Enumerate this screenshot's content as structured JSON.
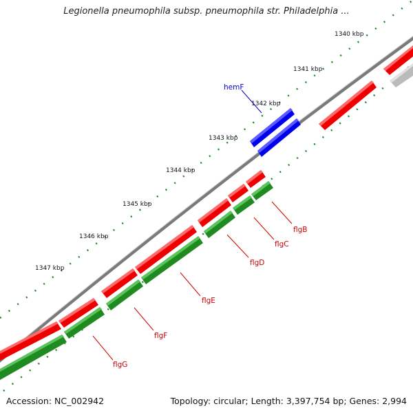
{
  "title": "Legionella pneumophila subsp. pneumophila str. Philadelphia ...",
  "footer": {
    "accession": "Accession: NC_002942",
    "topology": "Topology: circular; Length: 3,397,754 bp; Genes: 2,994"
  },
  "scale_labels": [
    "1340 kbp",
    "1341 kbp",
    "1342 kbp",
    "1343 kbp",
    "1344 kbp",
    "1345 kbp",
    "1346 kbp",
    "1347 kbp"
  ],
  "gene_labels": [
    "hemF",
    "flgB",
    "flgC",
    "flgD",
    "flgE",
    "flgF",
    "flgG"
  ],
  "colors": {
    "backbone": "#7a7a7a",
    "forward_gene": "#ff0000",
    "reverse_gene": "#1f8a1f",
    "highlight_gene": "#0000ff",
    "other_gene": "#bdbdbd",
    "ticks": "#1f8a1f",
    "gene_label": "#cc0000",
    "hemF_label": "#0000cc"
  }
}
